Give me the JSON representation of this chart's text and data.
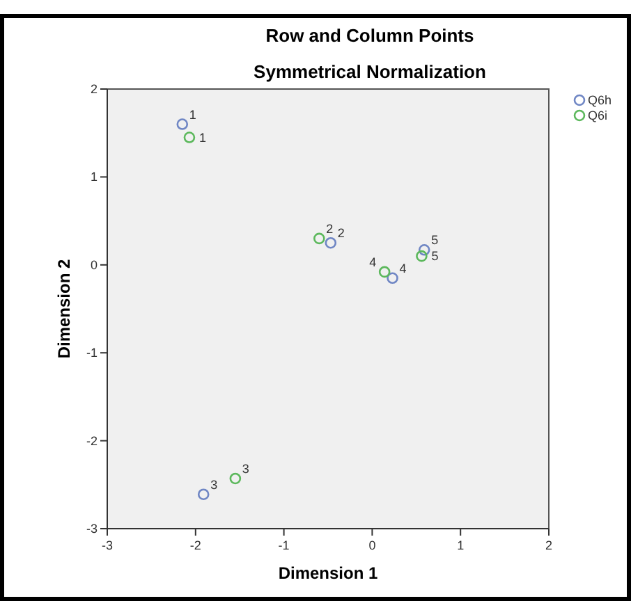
{
  "chart_data": {
    "type": "scatter",
    "title": "Row and Column Points",
    "subtitle": "Symmetrical Normalization",
    "xlabel": "Dimension 1",
    "ylabel": "Dimension 2",
    "xlim": [
      -3,
      2
    ],
    "xticks": [
      -3,
      -2,
      -1,
      0,
      1,
      2
    ],
    "ylim": [
      -3,
      2
    ],
    "yticks": [
      -3,
      -2,
      -1,
      0,
      1,
      2
    ],
    "grid": false,
    "legend": "top right",
    "marker": "circle",
    "series": [
      {
        "name": "Q6h",
        "color": "#6f86c4",
        "x": [
          -2.15,
          -0.47,
          -1.91,
          0.23,
          0.59
        ],
        "values": [
          1.6,
          0.25,
          -2.61,
          -0.15,
          0.17
        ]
      },
      {
        "name": "Q6i",
        "color": "#5cb85c",
        "x": [
          -2.07,
          -0.6,
          -1.55,
          0.14,
          0.56
        ],
        "values": [
          1.45,
          0.3,
          -2.43,
          -0.08,
          0.1
        ]
      }
    ],
    "annotations": [
      {
        "text": "1",
        "x": -2.15,
        "y": 1.6
      },
      {
        "text": "2",
        "x": -0.47,
        "y": 0.25
      },
      {
        "text": "3",
        "x": -1.91,
        "y": -2.61
      },
      {
        "text": "4",
        "x": 0.23,
        "y": -0.15
      },
      {
        "text": "5",
        "x": 0.59,
        "y": 0.17
      },
      {
        "text": "1",
        "x": -2.07,
        "y": 1.45
      },
      {
        "text": "2",
        "x": -0.6,
        "y": 0.3
      },
      {
        "text": "3",
        "x": -1.55,
        "y": -2.43
      },
      {
        "text": "4",
        "x": 0.14,
        "y": -0.08
      },
      {
        "text": "5",
        "x": 0.56,
        "y": 0.1
      }
    ]
  }
}
